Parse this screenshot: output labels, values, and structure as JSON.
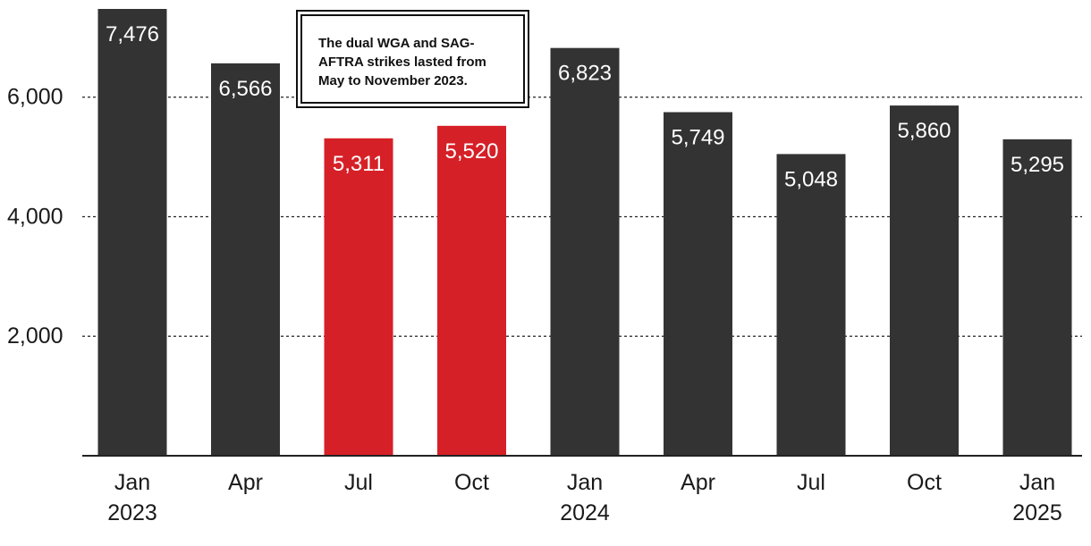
{
  "colors": {
    "default_bar": "#333333",
    "highlight_bar": "#d62027",
    "axis": "#222222",
    "grid": "#222222",
    "text": "#1a1a1a",
    "bar_label": "#ffffff"
  },
  "annotation": {
    "text": "The dual WGA and SAG-AFTRA strikes lasted from May to November 2023."
  },
  "chart_data": {
    "type": "bar",
    "title": "",
    "xlabel": "",
    "ylabel": "",
    "categories": [
      "Jan 2023",
      "Apr",
      "Jul",
      "Oct",
      "Jan 2024",
      "Apr",
      "Jul",
      "Oct",
      "Jan 2025"
    ],
    "values": [
      7476,
      6566,
      5311,
      5520,
      6823,
      5749,
      5048,
      5860,
      5295
    ],
    "value_labels": [
      "7,476",
      "6,566",
      "5,311",
      "5,520",
      "6,823",
      "5,749",
      "5,048",
      "5,860",
      "5,295"
    ],
    "highlighted": [
      false,
      false,
      true,
      true,
      false,
      false,
      false,
      false,
      false
    ],
    "x_tick_labels": [
      [
        "Jan",
        "2023"
      ],
      [
        "Apr"
      ],
      [
        "Jul"
      ],
      [
        "Oct"
      ],
      [
        "Jan",
        "2024"
      ],
      [
        "Apr"
      ],
      [
        "Jul"
      ],
      [
        "Oct"
      ],
      [
        "Jan",
        "2025"
      ]
    ],
    "ylim": [
      0,
      7476
    ],
    "y_ticks": [
      2000,
      4000,
      6000
    ],
    "y_tick_labels": [
      "2,000",
      "4,000",
      "6,000"
    ],
    "grid": true,
    "grid_style": "dotted",
    "legend": "none"
  }
}
